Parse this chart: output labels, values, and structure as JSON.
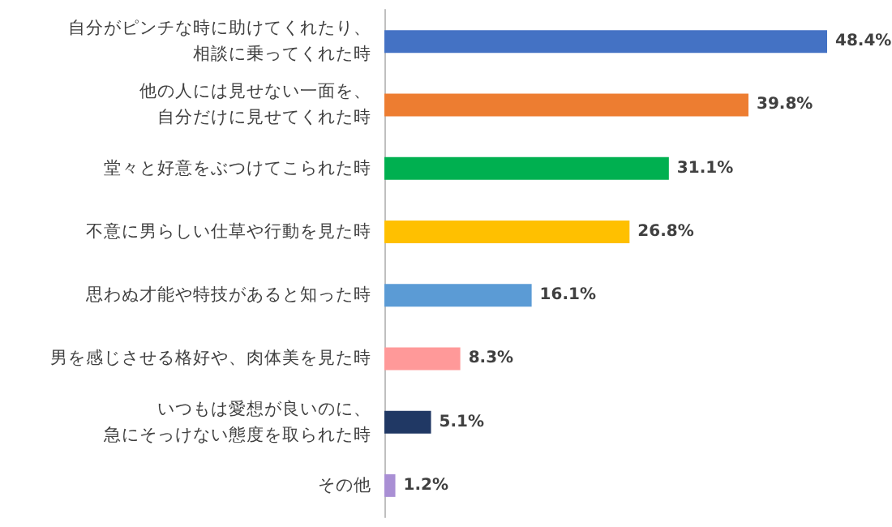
{
  "chart_data": {
    "type": "bar",
    "orientation": "horizontal",
    "categories": [
      "自分がピンチな時に助けてくれたり、相談に乗ってくれた時",
      "他の人には見せない一面を、自分だけに見せてくれた時",
      "堂々と好意をぶつけてこられた時",
      "不意に男らしい仕草や行動を見た時",
      "思わぬ才能や特技があると知った時",
      "男を感じさせる格好や、肉体美を見た時",
      "いつもは愛想が良いのに、急にそっけない態度を取られた時",
      "その他"
    ],
    "values": [
      48.4,
      39.8,
      31.1,
      26.8,
      16.1,
      8.3,
      5.1,
      1.2
    ],
    "value_labels": [
      "48.4%",
      "39.8%",
      "31.1%",
      "26.8%",
      "16.1%",
      "8.3%",
      "5.1%",
      "1.2%"
    ],
    "colors": [
      "#4472c4",
      "#ed7d31",
      "#00b050",
      "#ffc000",
      "#5b9bd5",
      "#ff9999",
      "#203864",
      "#a98fd4"
    ]
  }
}
